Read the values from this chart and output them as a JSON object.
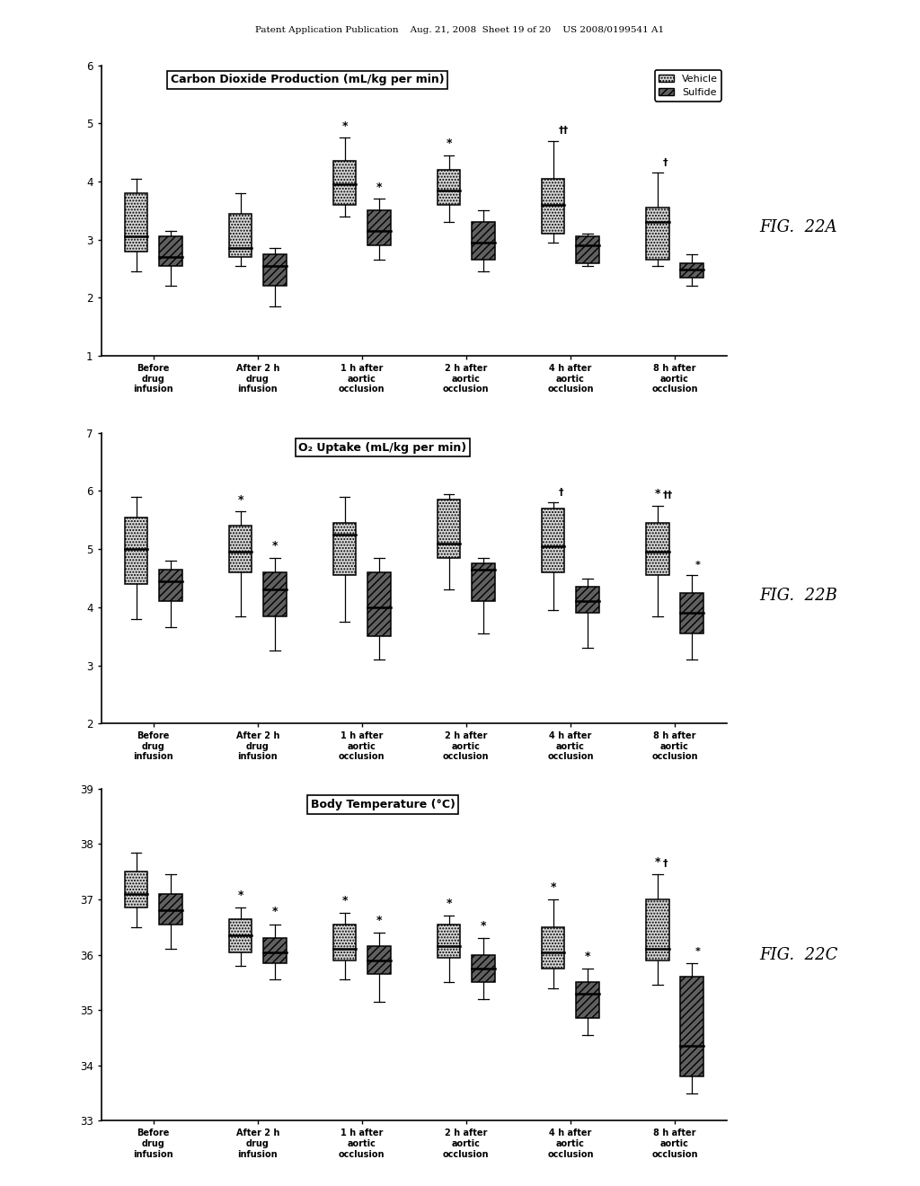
{
  "header_text": "Patent Application Publication    Aug. 21, 2008  Sheet 19 of 20    US 2008/0199541 A1",
  "fig_labels": [
    "FIG.  22A",
    "FIG.  22B",
    "FIG.  22C"
  ],
  "x_labels": [
    "Before\ndrug\ninfusion",
    "After 2 h\ndrug\ninfusion",
    "1 h after\naortic\nocclusion",
    "2 h after\naortic\nocclusion",
    "4 h after\naortic\nocclusion",
    "8 h after\naortic\nocclusion"
  ],
  "chart_titles": [
    "Carbon Dioxide Production (mL/kg per min)",
    "O₂ Uptake (mL/kg per min)",
    "Body Temperature (°C)"
  ],
  "plot_A": {
    "ylim": [
      1,
      6
    ],
    "yticks": [
      1,
      2,
      3,
      4,
      5,
      6
    ],
    "vehicle_boxes": [
      {
        "q1": 2.8,
        "median": 3.05,
        "q3": 3.8,
        "whislo": 2.45,
        "whishi": 4.05
      },
      {
        "q1": 2.7,
        "median": 2.85,
        "q3": 3.45,
        "whislo": 2.55,
        "whishi": 3.8
      },
      {
        "q1": 3.6,
        "median": 3.95,
        "q3": 4.35,
        "whislo": 3.4,
        "whishi": 4.75
      },
      {
        "q1": 3.6,
        "median": 3.85,
        "q3": 4.2,
        "whislo": 3.3,
        "whishi": 4.45
      },
      {
        "q1": 3.1,
        "median": 3.6,
        "q3": 4.05,
        "whislo": 2.95,
        "whishi": 4.7
      },
      {
        "q1": 2.65,
        "median": 3.3,
        "q3": 3.55,
        "whislo": 2.55,
        "whishi": 4.15
      }
    ],
    "sulfide_boxes": [
      {
        "q1": 2.55,
        "median": 2.7,
        "q3": 3.05,
        "whislo": 2.2,
        "whishi": 3.15
      },
      {
        "q1": 2.2,
        "median": 2.55,
        "q3": 2.75,
        "whislo": 1.85,
        "whishi": 2.85
      },
      {
        "q1": 2.9,
        "median": 3.15,
        "q3": 3.5,
        "whislo": 2.65,
        "whishi": 3.7
      },
      {
        "q1": 2.65,
        "median": 2.95,
        "q3": 3.3,
        "whislo": 2.45,
        "whishi": 3.5
      },
      {
        "q1": 2.6,
        "median": 2.9,
        "q3": 3.05,
        "whislo": 2.55,
        "whishi": 3.1
      },
      {
        "q1": 2.35,
        "median": 2.48,
        "q3": 2.6,
        "whislo": 2.2,
        "whishi": 2.75
      }
    ],
    "ann_v": [
      "",
      "",
      "*",
      "*",
      "",
      ""
    ],
    "ann_s": [
      "",
      "",
      "*",
      "",
      "",
      ""
    ],
    "ann_pair_v": [
      "",
      "",
      "",
      "",
      "††",
      "†"
    ],
    "ann_pair_s": [
      "",
      "",
      "",
      "",
      "",
      ""
    ]
  },
  "plot_B": {
    "ylim": [
      2,
      7
    ],
    "yticks": [
      2,
      3,
      4,
      5,
      6,
      7
    ],
    "vehicle_boxes": [
      {
        "q1": 4.4,
        "median": 5.0,
        "q3": 5.55,
        "whislo": 3.8,
        "whishi": 5.9
      },
      {
        "q1": 4.6,
        "median": 4.95,
        "q3": 5.4,
        "whislo": 3.85,
        "whishi": 5.65
      },
      {
        "q1": 4.55,
        "median": 5.25,
        "q3": 5.45,
        "whislo": 3.75,
        "whishi": 5.9
      },
      {
        "q1": 4.85,
        "median": 5.1,
        "q3": 5.85,
        "whislo": 4.3,
        "whishi": 5.95
      },
      {
        "q1": 4.6,
        "median": 5.05,
        "q3": 5.7,
        "whislo": 3.95,
        "whishi": 5.8
      },
      {
        "q1": 4.55,
        "median": 4.95,
        "q3": 5.45,
        "whislo": 3.85,
        "whishi": 5.75
      }
    ],
    "sulfide_boxes": [
      {
        "q1": 4.1,
        "median": 4.45,
        "q3": 4.65,
        "whislo": 3.65,
        "whishi": 4.8
      },
      {
        "q1": 3.85,
        "median": 4.3,
        "q3": 4.6,
        "whislo": 3.25,
        "whishi": 4.85
      },
      {
        "q1": 3.5,
        "median": 4.0,
        "q3": 4.6,
        "whislo": 3.1,
        "whishi": 4.85
      },
      {
        "q1": 4.1,
        "median": 4.65,
        "q3": 4.75,
        "whislo": 3.55,
        "whishi": 4.85
      },
      {
        "q1": 3.9,
        "median": 4.1,
        "q3": 4.35,
        "whislo": 3.3,
        "whishi": 4.5
      },
      {
        "q1": 3.55,
        "median": 3.9,
        "q3": 4.25,
        "whislo": 3.1,
        "whishi": 4.55
      }
    ],
    "ann_v": [
      "",
      "*",
      "",
      "",
      "",
      "*"
    ],
    "ann_s": [
      "",
      "*",
      "",
      "",
      "",
      ""
    ],
    "ann_pair_v": [
      "",
      "",
      "",
      "",
      "†",
      "††"
    ],
    "ann_pair_s": [
      "",
      "",
      "",
      "",
      "",
      "*"
    ]
  },
  "plot_C": {
    "ylim": [
      33,
      39
    ],
    "yticks": [
      33,
      34,
      35,
      36,
      37,
      38,
      39
    ],
    "vehicle_boxes": [
      {
        "q1": 36.85,
        "median": 37.1,
        "q3": 37.5,
        "whislo": 36.5,
        "whishi": 37.85
      },
      {
        "q1": 36.05,
        "median": 36.35,
        "q3": 36.65,
        "whislo": 35.8,
        "whishi": 36.85
      },
      {
        "q1": 35.9,
        "median": 36.1,
        "q3": 36.55,
        "whislo": 35.55,
        "whishi": 36.75
      },
      {
        "q1": 35.95,
        "median": 36.15,
        "q3": 36.55,
        "whislo": 35.5,
        "whishi": 36.7
      },
      {
        "q1": 35.75,
        "median": 36.05,
        "q3": 36.5,
        "whislo": 35.4,
        "whishi": 37.0
      },
      {
        "q1": 35.9,
        "median": 36.1,
        "q3": 37.0,
        "whislo": 35.45,
        "whishi": 37.45
      }
    ],
    "sulfide_boxes": [
      {
        "q1": 36.55,
        "median": 36.8,
        "q3": 37.1,
        "whislo": 36.1,
        "whishi": 37.45
      },
      {
        "q1": 35.85,
        "median": 36.05,
        "q3": 36.3,
        "whislo": 35.55,
        "whishi": 36.55
      },
      {
        "q1": 35.65,
        "median": 35.9,
        "q3": 36.15,
        "whislo": 35.15,
        "whishi": 36.4
      },
      {
        "q1": 35.5,
        "median": 35.75,
        "q3": 36.0,
        "whislo": 35.2,
        "whishi": 36.3
      },
      {
        "q1": 34.85,
        "median": 35.3,
        "q3": 35.5,
        "whislo": 34.55,
        "whishi": 35.75
      },
      {
        "q1": 33.8,
        "median": 34.35,
        "q3": 35.6,
        "whislo": 33.5,
        "whishi": 35.85
      }
    ],
    "ann_v": [
      "",
      "*",
      "*",
      "*",
      "*",
      "*"
    ],
    "ann_s": [
      "",
      "*",
      "*",
      "*",
      "*",
      ""
    ],
    "ann_pair_v": [
      "",
      "",
      "",
      "",
      "",
      "†"
    ],
    "ann_pair_s": [
      "",
      "",
      "",
      "",
      "",
      "*"
    ]
  },
  "vehicle_color": "#d8d8d8",
  "vehicle_hatch": ".....",
  "sulfide_color": "#606060",
  "sulfide_hatch": "////",
  "box_width": 0.22
}
